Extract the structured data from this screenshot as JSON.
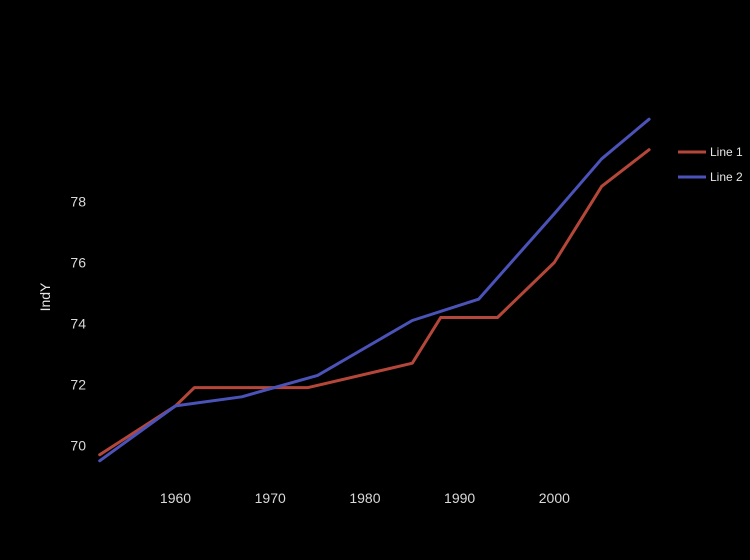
{
  "chart_data": {
    "type": "line",
    "title": "",
    "xlabel": "",
    "ylabel": "IndY",
    "xlim": [
      1951.5,
      2012
    ],
    "ylim": [
      69.2,
      81
    ],
    "x_ticks": [
      1960,
      1970,
      1980,
      1990,
      2000
    ],
    "y_ticks": [
      70,
      72,
      74,
      76,
      78
    ],
    "grid": false,
    "legend_position": "top-right",
    "series": [
      {
        "name": "Line 1",
        "color": "#b5473a",
        "x": [
          1952,
          1960,
          1962,
          1967,
          1974,
          1985,
          1988,
          1994,
          2000,
          2005,
          2010
        ],
        "y": [
          69.7,
          71.3,
          71.9,
          71.9,
          71.9,
          72.7,
          74.2,
          74.2,
          76.0,
          78.5,
          79.7
        ]
      },
      {
        "name": "Line 2",
        "color": "#4b52b8",
        "x": [
          1952,
          1960,
          1967,
          1975,
          1985,
          1992,
          2000,
          2005,
          2010
        ],
        "y": [
          69.5,
          71.3,
          71.6,
          72.3,
          74.1,
          74.8,
          77.6,
          79.4,
          80.7
        ]
      }
    ]
  }
}
